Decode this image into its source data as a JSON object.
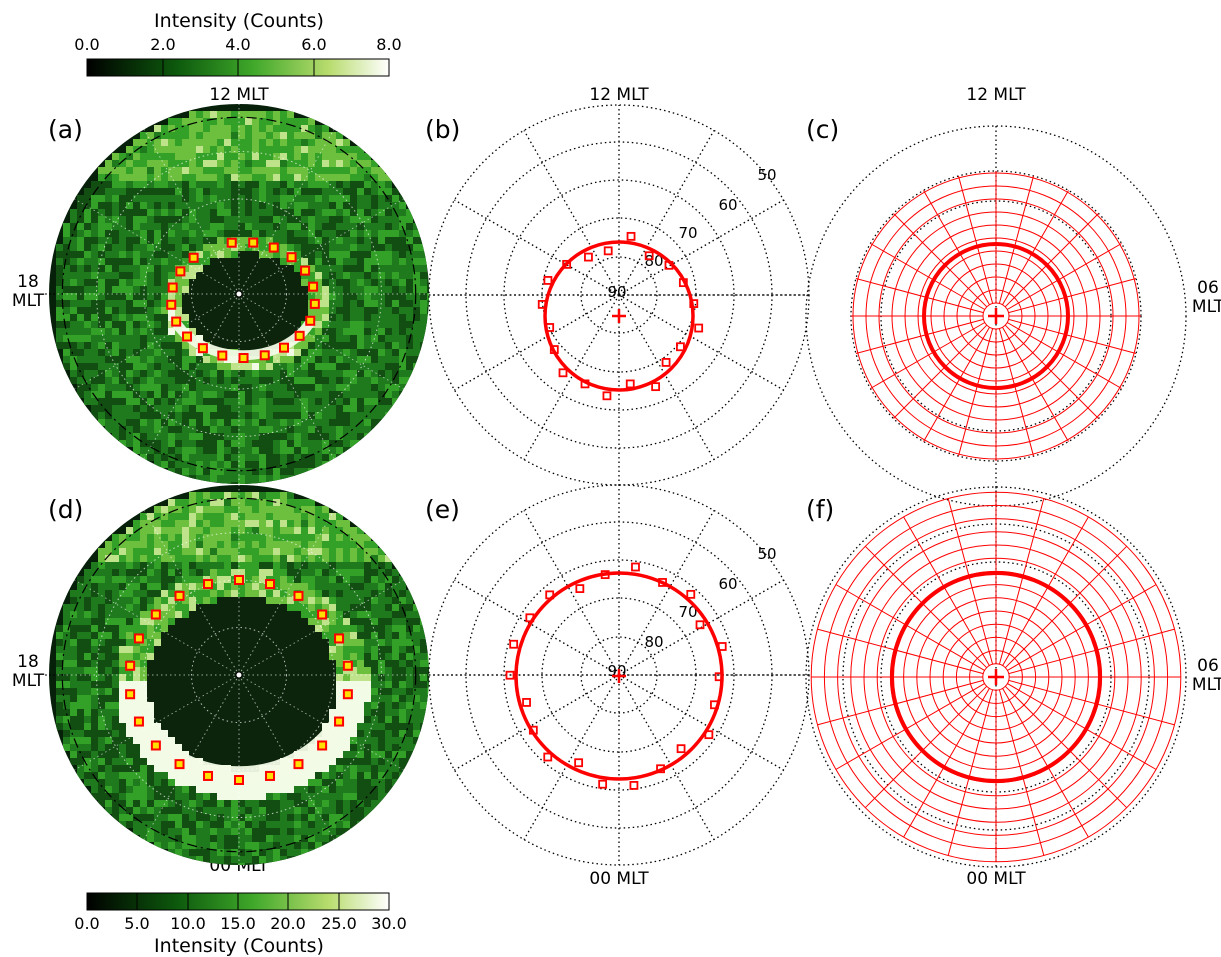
{
  "colorbar_top": {
    "title": "Intensity (Counts)",
    "ticks": [
      "0.0",
      "2.0",
      "4.0",
      "6.0",
      "8.0"
    ]
  },
  "colorbar_bottom": {
    "title": "Intensity (Counts)",
    "ticks": [
      "0.0",
      "5.0",
      "10.0",
      "15.0",
      "20.0",
      "25.0",
      "30.0"
    ]
  },
  "mlt_labels": {
    "noon": "12 MLT",
    "midnight": "00 MLT",
    "dusk": "18",
    "dawn": "06",
    "mlt": "MLT"
  },
  "panel_labels": [
    "(a)",
    "(b)",
    "(c)",
    "(d)",
    "(e)",
    "(f)"
  ],
  "latitude_labels": [
    "50",
    "60",
    "70",
    "80",
    "90"
  ],
  "colors": {
    "fit": "#ff0000",
    "grid": "#000000",
    "aurora_dark": "#0a2a08",
    "aurora_green": "#2f8f22",
    "aurora_bright": "#f2fbe6",
    "marker_fill": "#ffe000"
  },
  "oval_fits": {
    "b": {
      "center_offset_deg": [
        0,
        3
      ],
      "radius_deg": 20
    },
    "e": {
      "center_offset_deg": [
        0,
        0
      ],
      "radius_deg": 27
    }
  }
}
